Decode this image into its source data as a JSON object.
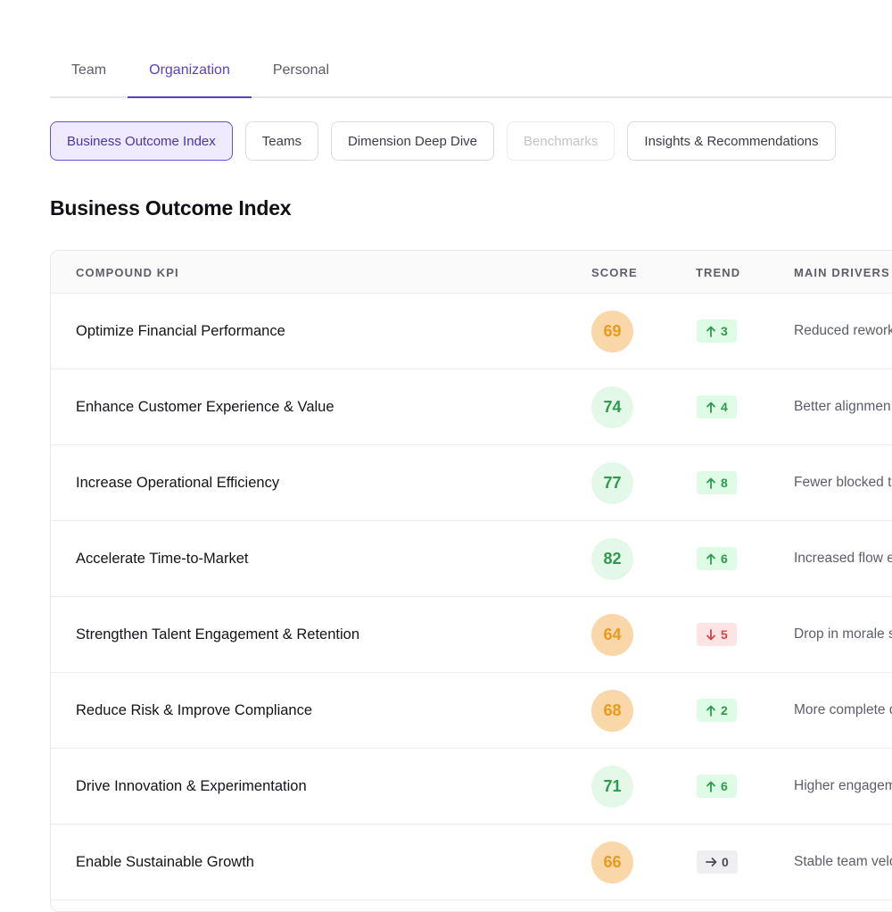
{
  "tabs": [
    "Team",
    "Organization",
    "Personal"
  ],
  "subtabs": [
    "Business Outcome Index",
    "Teams",
    "Dimension Deep Dive",
    "Benchmarks",
    "Insights & Recommendations"
  ],
  "section_title": "Business Outcome Index",
  "table": {
    "headers": {
      "kpi": "COMPOUND KPI",
      "score": "SCORE",
      "trend": "TREND",
      "drivers": "MAIN DRIVERS"
    },
    "rows": [
      {
        "kpi": "Optimize Financial Performance",
        "score": "69",
        "score_level": "warn",
        "trend_dir": "up",
        "trend": "3",
        "driver": "Reduced rework"
      },
      {
        "kpi": "Enhance Customer Experience & Value",
        "score": "74",
        "score_level": "good",
        "trend_dir": "up",
        "trend": "4",
        "driver": "Better alignmen"
      },
      {
        "kpi": "Increase Operational Efficiency",
        "score": "77",
        "score_level": "good",
        "trend_dir": "up",
        "trend": "8",
        "driver": "Fewer blocked t"
      },
      {
        "kpi": "Accelerate Time-to-Market",
        "score": "82",
        "score_level": "good",
        "trend_dir": "up",
        "trend": "6",
        "driver": "Increased flow e"
      },
      {
        "kpi": "Strengthen Talent Engagement & Retention",
        "score": "64",
        "score_level": "warn",
        "trend_dir": "down",
        "trend": "5",
        "driver": "Drop in morale s"
      },
      {
        "kpi": "Reduce Risk & Improve Compliance",
        "score": "68",
        "score_level": "warn",
        "trend_dir": "up",
        "trend": "2",
        "driver": "More complete d"
      },
      {
        "kpi": "Drive Innovation & Experimentation",
        "score": "71",
        "score_level": "good",
        "trend_dir": "up",
        "trend": "6",
        "driver": "Higher engagem"
      },
      {
        "kpi": "Enable Sustainable Growth",
        "score": "66",
        "score_level": "warn",
        "trend_dir": "flat",
        "trend": "0",
        "driver": "Stable team velo"
      }
    ]
  },
  "colors": {
    "accent": "#5b3fc4",
    "good": "#2f9a4d",
    "warn": "#e99a1e",
    "bad": "#d64545"
  }
}
